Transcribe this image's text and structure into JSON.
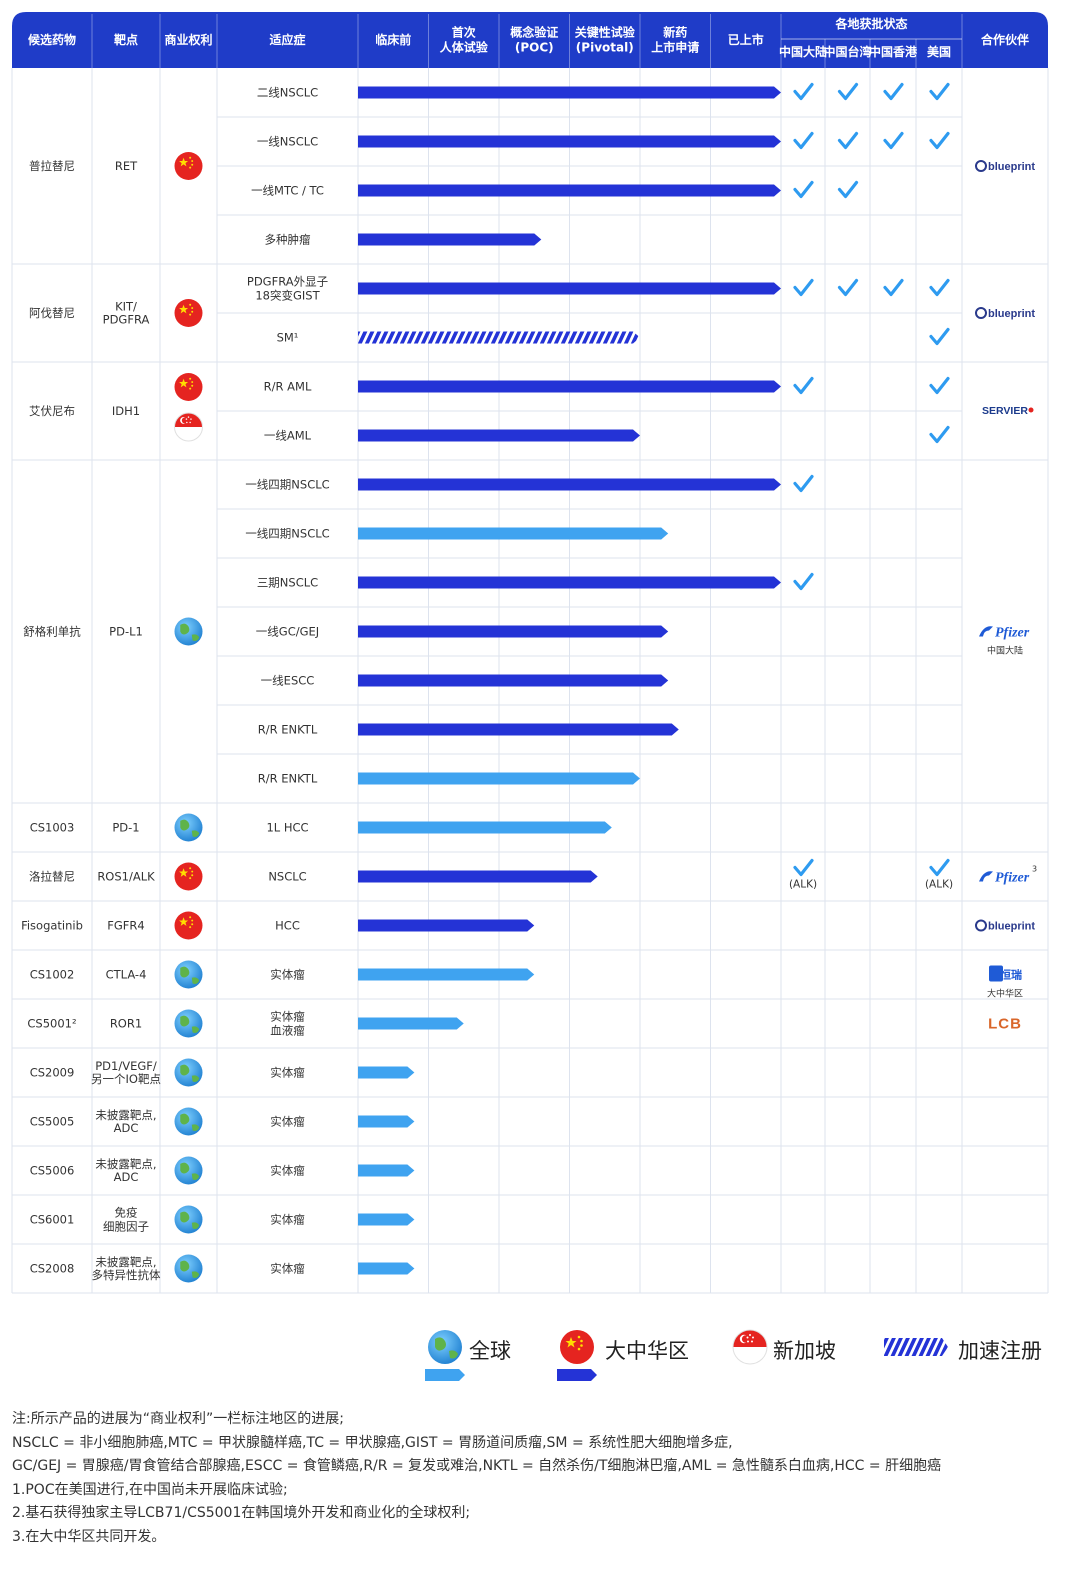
{
  "chart_data": {
    "type": "bar",
    "headers": {
      "drug": "候选药物",
      "target": "靶点",
      "rights": "商业权利",
      "indication": "适应症",
      "phases": [
        "临床前",
        "首次\n人体试验",
        "概念验证\n(POC)",
        "关键性试验\n(Pivotal)",
        "新药\n上市申请",
        "已上市"
      ],
      "approval_group": "各地获批状态",
      "regions": [
        "中国大陆",
        "中国台湾",
        "中国香港",
        "美国"
      ],
      "partner": "合作伙伴"
    },
    "phase_axis": {
      "min": 0,
      "max": 6
    },
    "groups": [
      {
        "drug": "普拉替尼",
        "target": "RET",
        "rights": [
          "china"
        ],
        "partner": {
          "name": "blueprint",
          "sub": ""
        },
        "rows": [
          {
            "indication": "二线NSCLC",
            "progress": 6.0,
            "style": "china",
            "approvals": [
              true,
              true,
              true,
              true
            ]
          },
          {
            "indication": "一线NSCLC",
            "progress": 6.0,
            "style": "china",
            "approvals": [
              true,
              true,
              true,
              true
            ]
          },
          {
            "indication": "一线MTC / TC",
            "progress": 6.0,
            "style": "china",
            "approvals": [
              true,
              true,
              false,
              false
            ]
          },
          {
            "indication": "多种肿瘤",
            "progress": 2.6,
            "style": "china",
            "approvals": [
              false,
              false,
              false,
              false
            ]
          }
        ]
      },
      {
        "drug": "阿伐替尼",
        "target": "KIT/\nPDGFRA",
        "rights": [
          "china"
        ],
        "partner": {
          "name": "blueprint",
          "sub": ""
        },
        "rows": [
          {
            "indication": "PDGFRA外显子\n18突变GIST",
            "progress": 6.0,
            "style": "china",
            "approvals": [
              true,
              true,
              true,
              true
            ]
          },
          {
            "indication": "SM¹",
            "progress": 4.0,
            "style": "accelerated",
            "approvals": [
              false,
              false,
              false,
              true
            ]
          }
        ]
      },
      {
        "drug": "艾伏尼布",
        "target": "IDH1",
        "rights": [
          "china",
          "singapore"
        ],
        "partner": {
          "name": "SERVIER",
          "sub": ""
        },
        "rows": [
          {
            "indication": "R/R AML",
            "progress": 6.0,
            "style": "china",
            "approvals": [
              true,
              false,
              false,
              true
            ]
          },
          {
            "indication": "一线AML",
            "progress": 4.0,
            "style": "china",
            "approvals": [
              false,
              false,
              false,
              true
            ]
          }
        ]
      },
      {
        "drug": "舒格利单抗",
        "target": "PD-L1",
        "rights": [
          "global"
        ],
        "partner": {
          "name": "Pfizer",
          "sub": "中国大陆"
        },
        "rows": [
          {
            "indication": "一线四期NSCLC",
            "progress": 6.0,
            "style": "china",
            "approvals": [
              true,
              false,
              false,
              false
            ]
          },
          {
            "indication": "一线四期NSCLC",
            "progress": 4.4,
            "style": "global",
            "approvals": [
              false,
              false,
              false,
              false
            ]
          },
          {
            "indication": "三期NSCLC",
            "progress": 6.0,
            "style": "china",
            "approvals": [
              true,
              false,
              false,
              false
            ]
          },
          {
            "indication": "一线GC/GEJ",
            "progress": 4.4,
            "style": "china",
            "approvals": [
              false,
              false,
              false,
              false
            ]
          },
          {
            "indication": "一线ESCC",
            "progress": 4.4,
            "style": "china",
            "approvals": [
              false,
              false,
              false,
              false
            ]
          },
          {
            "indication": "R/R ENKTL",
            "progress": 4.55,
            "style": "china",
            "approvals": [
              false,
              false,
              false,
              false
            ]
          },
          {
            "indication": "R/R ENKTL",
            "progress": 4.0,
            "style": "global",
            "approvals": [
              false,
              false,
              false,
              false
            ]
          }
        ]
      },
      {
        "drug": "CS1003",
        "target": "PD-1",
        "rights": [
          "global"
        ],
        "partner": {
          "name": "",
          "sub": ""
        },
        "rows": [
          {
            "indication": "1L HCC",
            "progress": 3.6,
            "style": "global",
            "approvals": [
              false,
              false,
              false,
              false
            ]
          }
        ]
      },
      {
        "drug": "洛拉替尼",
        "target": "ROS1/ALK",
        "rights": [
          "china"
        ],
        "partner": {
          "name": "Pfizer",
          "sub": "",
          "sup": "3"
        },
        "rows": [
          {
            "indication": "NSCLC",
            "progress": 3.4,
            "style": "china",
            "approvals": [
              true,
              false,
              false,
              true
            ],
            "approval_note": "(ALK)"
          }
        ]
      },
      {
        "drug": "Fisogatinib",
        "target": "FGFR4",
        "rights": [
          "china"
        ],
        "partner": {
          "name": "blueprint",
          "sub": ""
        },
        "rows": [
          {
            "indication": "HCC",
            "progress": 2.5,
            "style": "china",
            "approvals": [
              false,
              false,
              false,
              false
            ]
          }
        ]
      },
      {
        "drug": "CS1002",
        "target": "CTLA-4",
        "rights": [
          "global"
        ],
        "partner": {
          "name": "恒瑞",
          "sub": "大中华区"
        },
        "rows": [
          {
            "indication": "实体瘤",
            "progress": 2.5,
            "style": "global",
            "approvals": [
              false,
              false,
              false,
              false
            ]
          }
        ]
      },
      {
        "drug": "CS5001²",
        "target": "ROR1",
        "rights": [
          "global"
        ],
        "partner": {
          "name": "LCB",
          "sub": ""
        },
        "rows": [
          {
            "indication": "实体瘤\n血液瘤",
            "progress": 1.5,
            "style": "global",
            "approvals": [
              false,
              false,
              false,
              false
            ]
          }
        ]
      },
      {
        "drug": "CS2009",
        "target": "PD1/VEGF/\n另一个IO靶点",
        "rights": [
          "global"
        ],
        "partner": {
          "name": "",
          "sub": ""
        },
        "rows": [
          {
            "indication": "实体瘤",
            "progress": 0.8,
            "style": "global",
            "approvals": [
              false,
              false,
              false,
              false
            ]
          }
        ]
      },
      {
        "drug": "CS5005",
        "target": "未披露靶点,\nADC",
        "rights": [
          "global"
        ],
        "partner": {
          "name": "",
          "sub": ""
        },
        "rows": [
          {
            "indication": "实体瘤",
            "progress": 0.8,
            "style": "global",
            "approvals": [
              false,
              false,
              false,
              false
            ]
          }
        ]
      },
      {
        "drug": "CS5006",
        "target": "未披露靶点,\nADC",
        "rights": [
          "global"
        ],
        "partner": {
          "name": "",
          "sub": ""
        },
        "rows": [
          {
            "indication": "实体瘤",
            "progress": 0.8,
            "style": "global",
            "approvals": [
              false,
              false,
              false,
              false
            ]
          }
        ]
      },
      {
        "drug": "CS6001",
        "target": "免疫\n细胞因子",
        "rights": [
          "global"
        ],
        "partner": {
          "name": "",
          "sub": ""
        },
        "rows": [
          {
            "indication": "实体瘤",
            "progress": 0.8,
            "style": "global",
            "approvals": [
              false,
              false,
              false,
              false
            ]
          }
        ]
      },
      {
        "drug": "CS2008",
        "target": "未披露靶点,\n多特异性抗体",
        "rights": [
          "global"
        ],
        "partner": {
          "name": "",
          "sub": ""
        },
        "rows": [
          {
            "indication": "实体瘤",
            "progress": 0.8,
            "style": "global",
            "approvals": [
              false,
              false,
              false,
              false
            ]
          }
        ]
      }
    ],
    "colors": {
      "header": "#1f3cc8",
      "china_bar": "#2433d6",
      "global_bar": "#3fa3f0",
      "check": "#2e9bf0",
      "grid": "#dde3ee"
    }
  },
  "legend": {
    "global": "全球",
    "china": "大中华区",
    "singapore": "新加坡",
    "accelerated": "加速注册"
  },
  "notes": [
    "注:所示产品的进展为“商业权利”一栏标注地区的进展;",
    "NSCLC = 非小细胞肺癌,MTC = 甲状腺髓样癌,TC = 甲状腺癌,GIST = 胃肠道间质瘤,SM = 系统性肥大细胞增多症,",
    "GC/GEJ = 胃腺癌/胃食管结合部腺癌,ESCC = 食管鳞癌,R/R = 复发或难治,NKTL = 自然杀伤/T细胞淋巴瘤,AML = 急性髓系白血病,HCC = 肝细胞癌",
    "1.POC在美国进行,在中国尚未开展临床试验;",
    "2.基石获得独家主导LCB71/CS5001在韩国境外开发和商业化的全球权利;",
    "3.在大中华区共同开发。"
  ]
}
